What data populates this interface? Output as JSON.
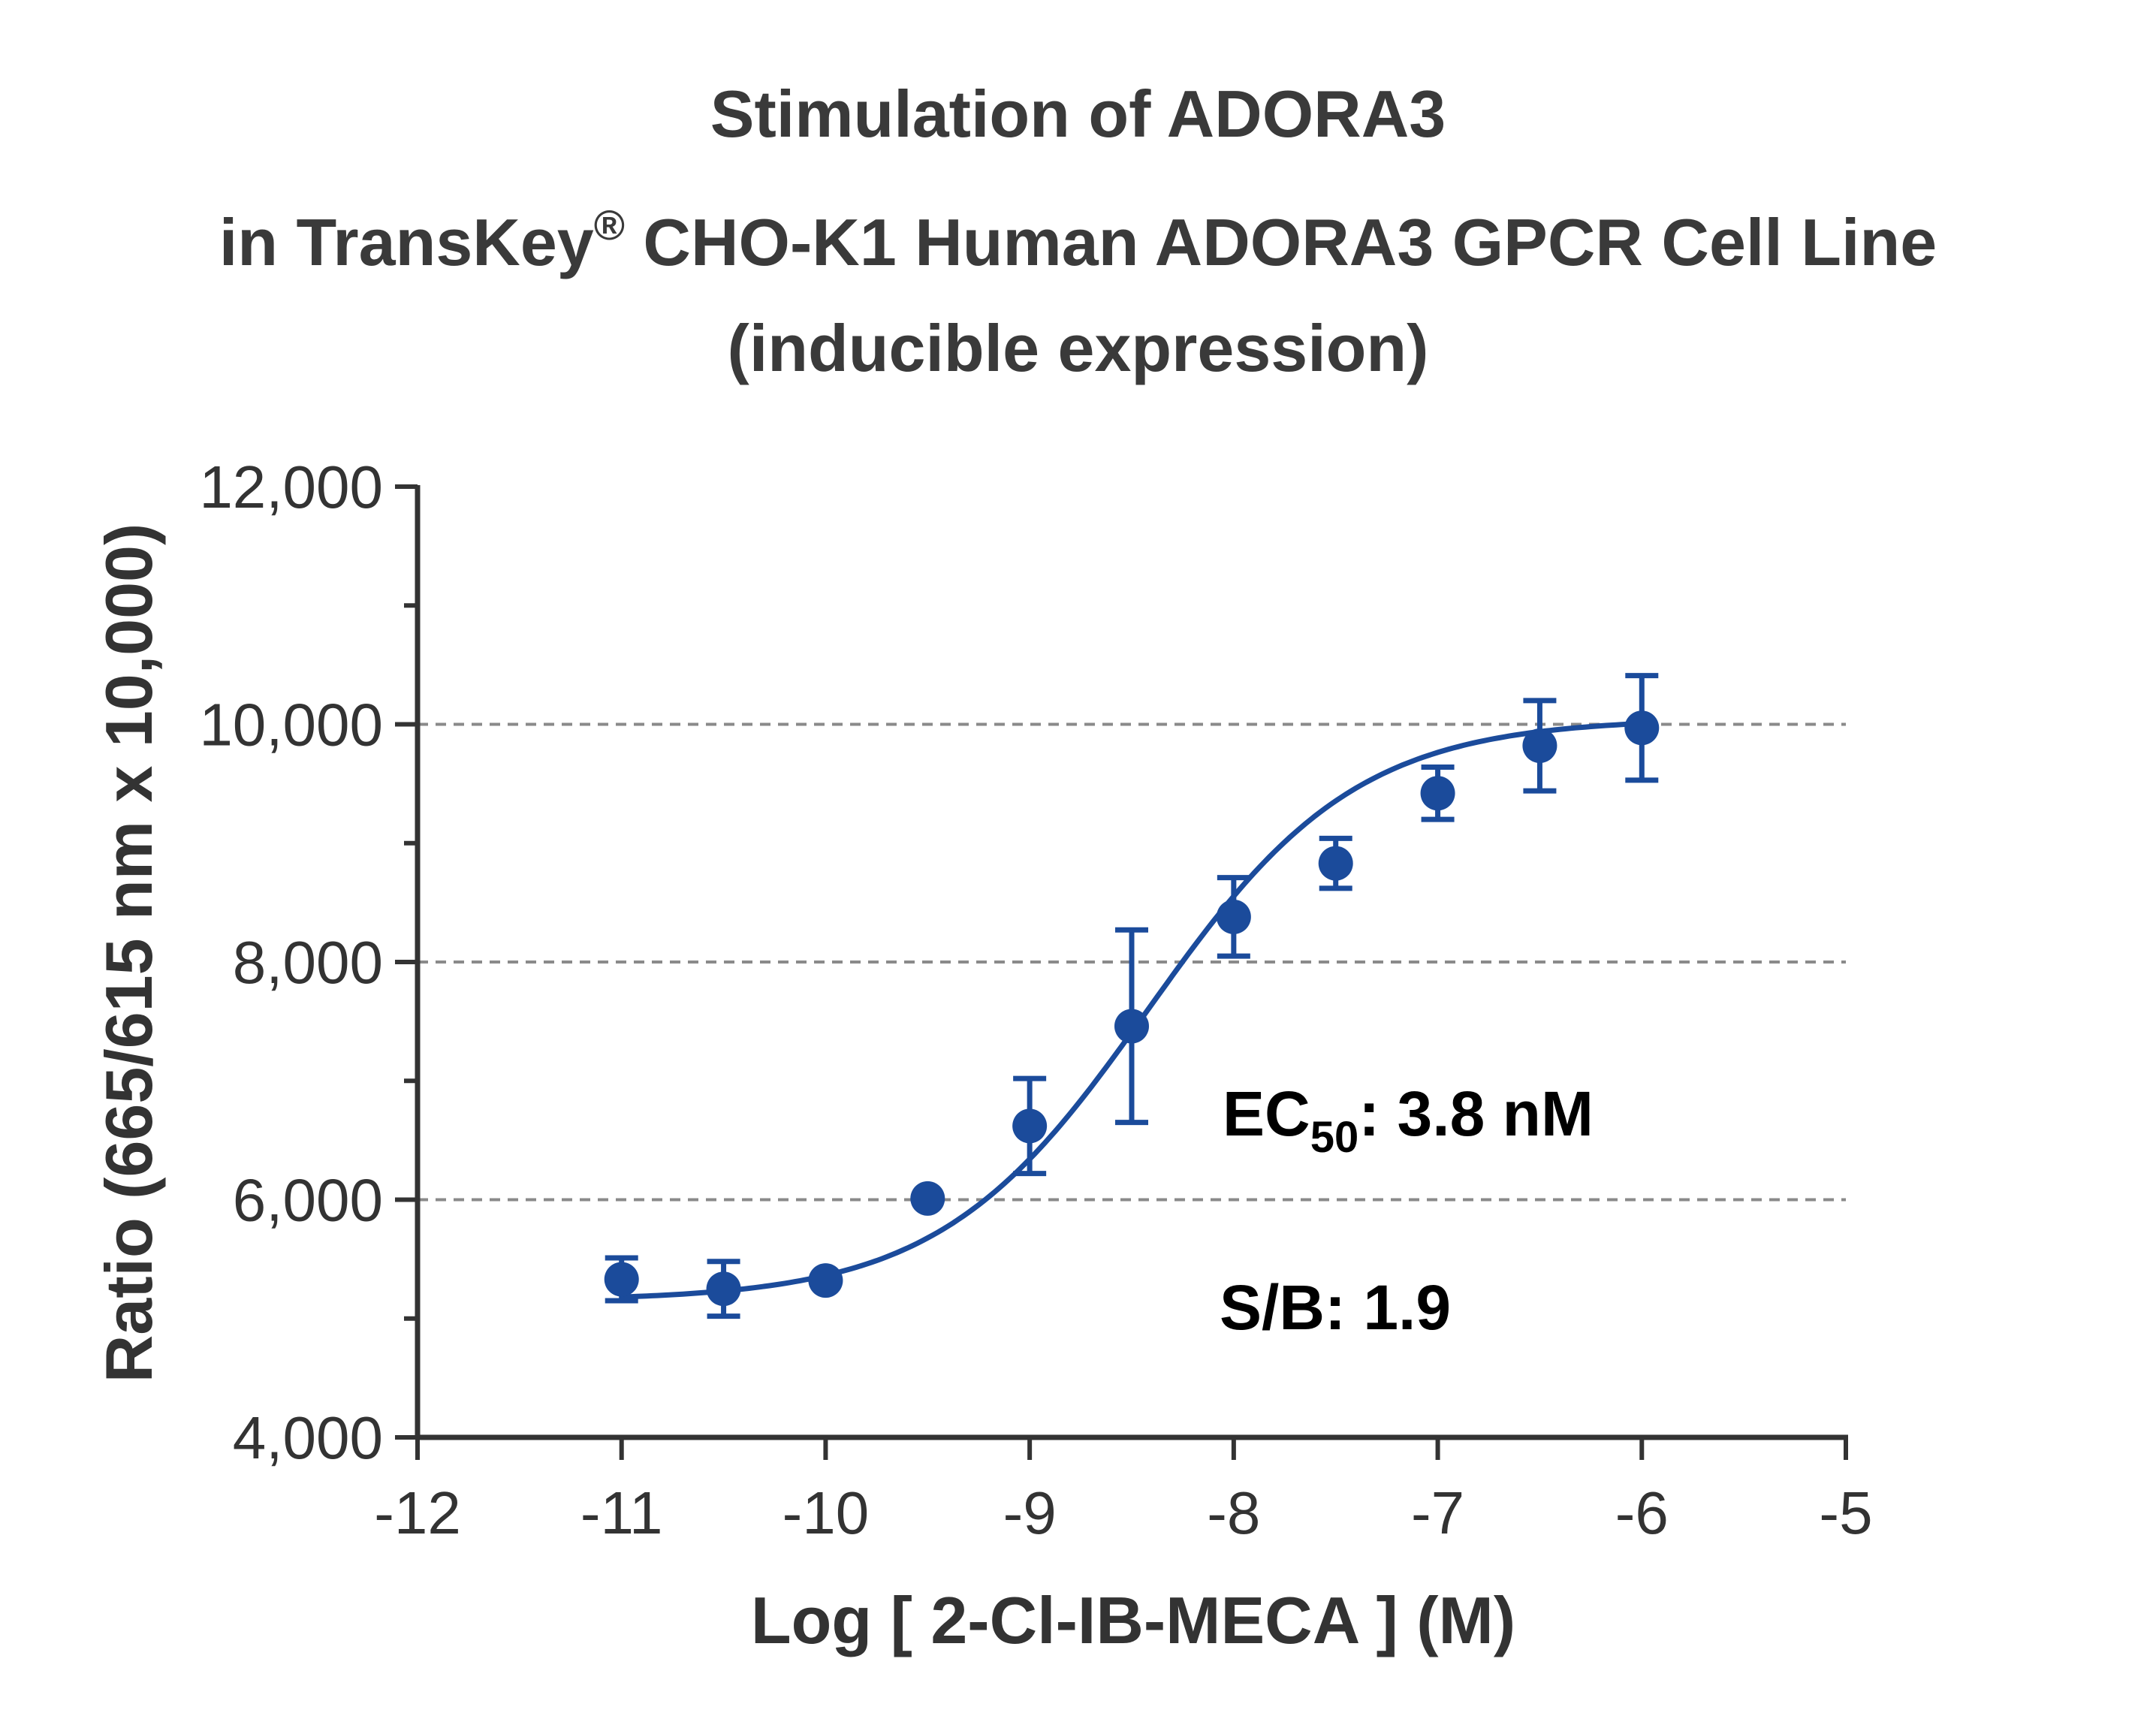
{
  "title": {
    "line1": "Stimulation of  ADORA3",
    "line2_pre": "in TransKey",
    "line2_sup": "®",
    "line2_post": " CHO-K1 Human ADORA3 GPCR Cell Line",
    "line3": "(inducible expression)"
  },
  "chart_data": {
    "type": "scatter",
    "title": "Stimulation of  ADORA3 in TransKey® CHO-K1 Human ADORA3 GPCR Cell Line (inducible expression)",
    "xlabel": "Log [ 2-Cl-IB-MECA ]  (M)",
    "ylabel": "Ratio (665/615 nm x 10,000)",
    "xlim": [
      -12,
      -5
    ],
    "ylim": [
      4000,
      12000
    ],
    "x_ticks": [
      "-12",
      "-11",
      "-10",
      "-9",
      "-8",
      "-7",
      "-6",
      "-5"
    ],
    "y_ticks": [
      "4,000",
      "6,000",
      "8,000",
      "10,000",
      "12,000"
    ],
    "gridlines_y": [
      6000,
      8000,
      10000
    ],
    "series_color": "#1b4b9b",
    "series": [
      {
        "x": [
          -11,
          -10.5,
          -10,
          -9.5,
          -9,
          -8.5,
          -8,
          -7.5,
          -7,
          -6.5,
          -6
        ],
        "y": [
          5330,
          5250,
          5320,
          6010,
          6620,
          7460,
          8380,
          8830,
          9420,
          9820,
          9970
        ],
        "err": [
          180,
          230,
          0,
          0,
          400,
          810,
          330,
          210,
          220,
          380,
          440
        ]
      }
    ],
    "fit": {
      "bottom": 5150,
      "top": 10050,
      "log_ec50": -8.42,
      "hill": 0.85
    },
    "annotations": {
      "ec50_prefix": "EC",
      "ec50_sub": "50",
      "ec50_value": ": 3.8 nM",
      "sb": "S/B: 1.9"
    }
  }
}
